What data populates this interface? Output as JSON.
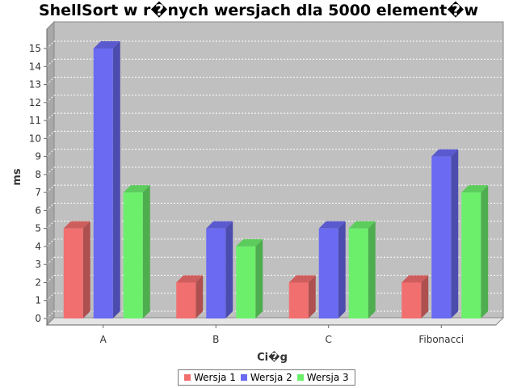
{
  "chart_data": {
    "type": "bar",
    "title": "ShellSort w r�nych wersjach dla 5000 element�w",
    "xlabel": "Ci�g",
    "ylabel": "ms",
    "categories": [
      "A",
      "B",
      "C",
      "Fibonacci"
    ],
    "series": [
      {
        "name": "Wersja 1",
        "color": "#f26f6f",
        "values": [
          5,
          2,
          2,
          2
        ]
      },
      {
        "name": "Wersja 2",
        "color": "#6a6af2",
        "values": [
          15,
          5,
          5,
          9
        ]
      },
      {
        "name": "Wersja 3",
        "color": "#6cf06c",
        "values": [
          7,
          4,
          5,
          7
        ]
      }
    ],
    "ylim": [
      0,
      15
    ],
    "yticks": [
      0,
      1,
      2,
      3,
      4,
      5,
      6,
      7,
      8,
      9,
      10,
      11,
      12,
      13,
      14,
      15
    ],
    "grid": true,
    "legend": "bottom",
    "background_color": "#c0c0c0",
    "gridline_color": "#ffffff"
  }
}
